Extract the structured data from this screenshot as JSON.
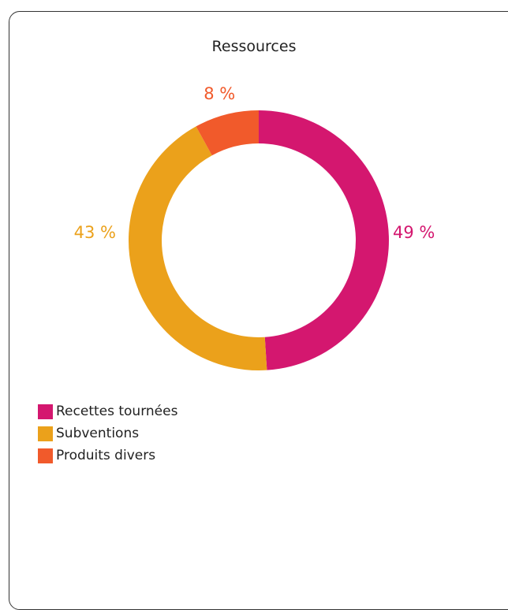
{
  "chart_data": {
    "type": "pie",
    "title": "Ressources",
    "donut": true,
    "slices": [
      {
        "label": "Recettes tournées",
        "value": 49,
        "value_label": "49 %",
        "color": "#d4176f"
      },
      {
        "label": "Subventions",
        "value": 43,
        "value_label": "43 %",
        "color": "#eba11b"
      },
      {
        "label": "Produits divers",
        "value": 8,
        "value_label": "8 %",
        "color": "#f15a2b"
      }
    ],
    "legend_position": "bottom-left"
  }
}
